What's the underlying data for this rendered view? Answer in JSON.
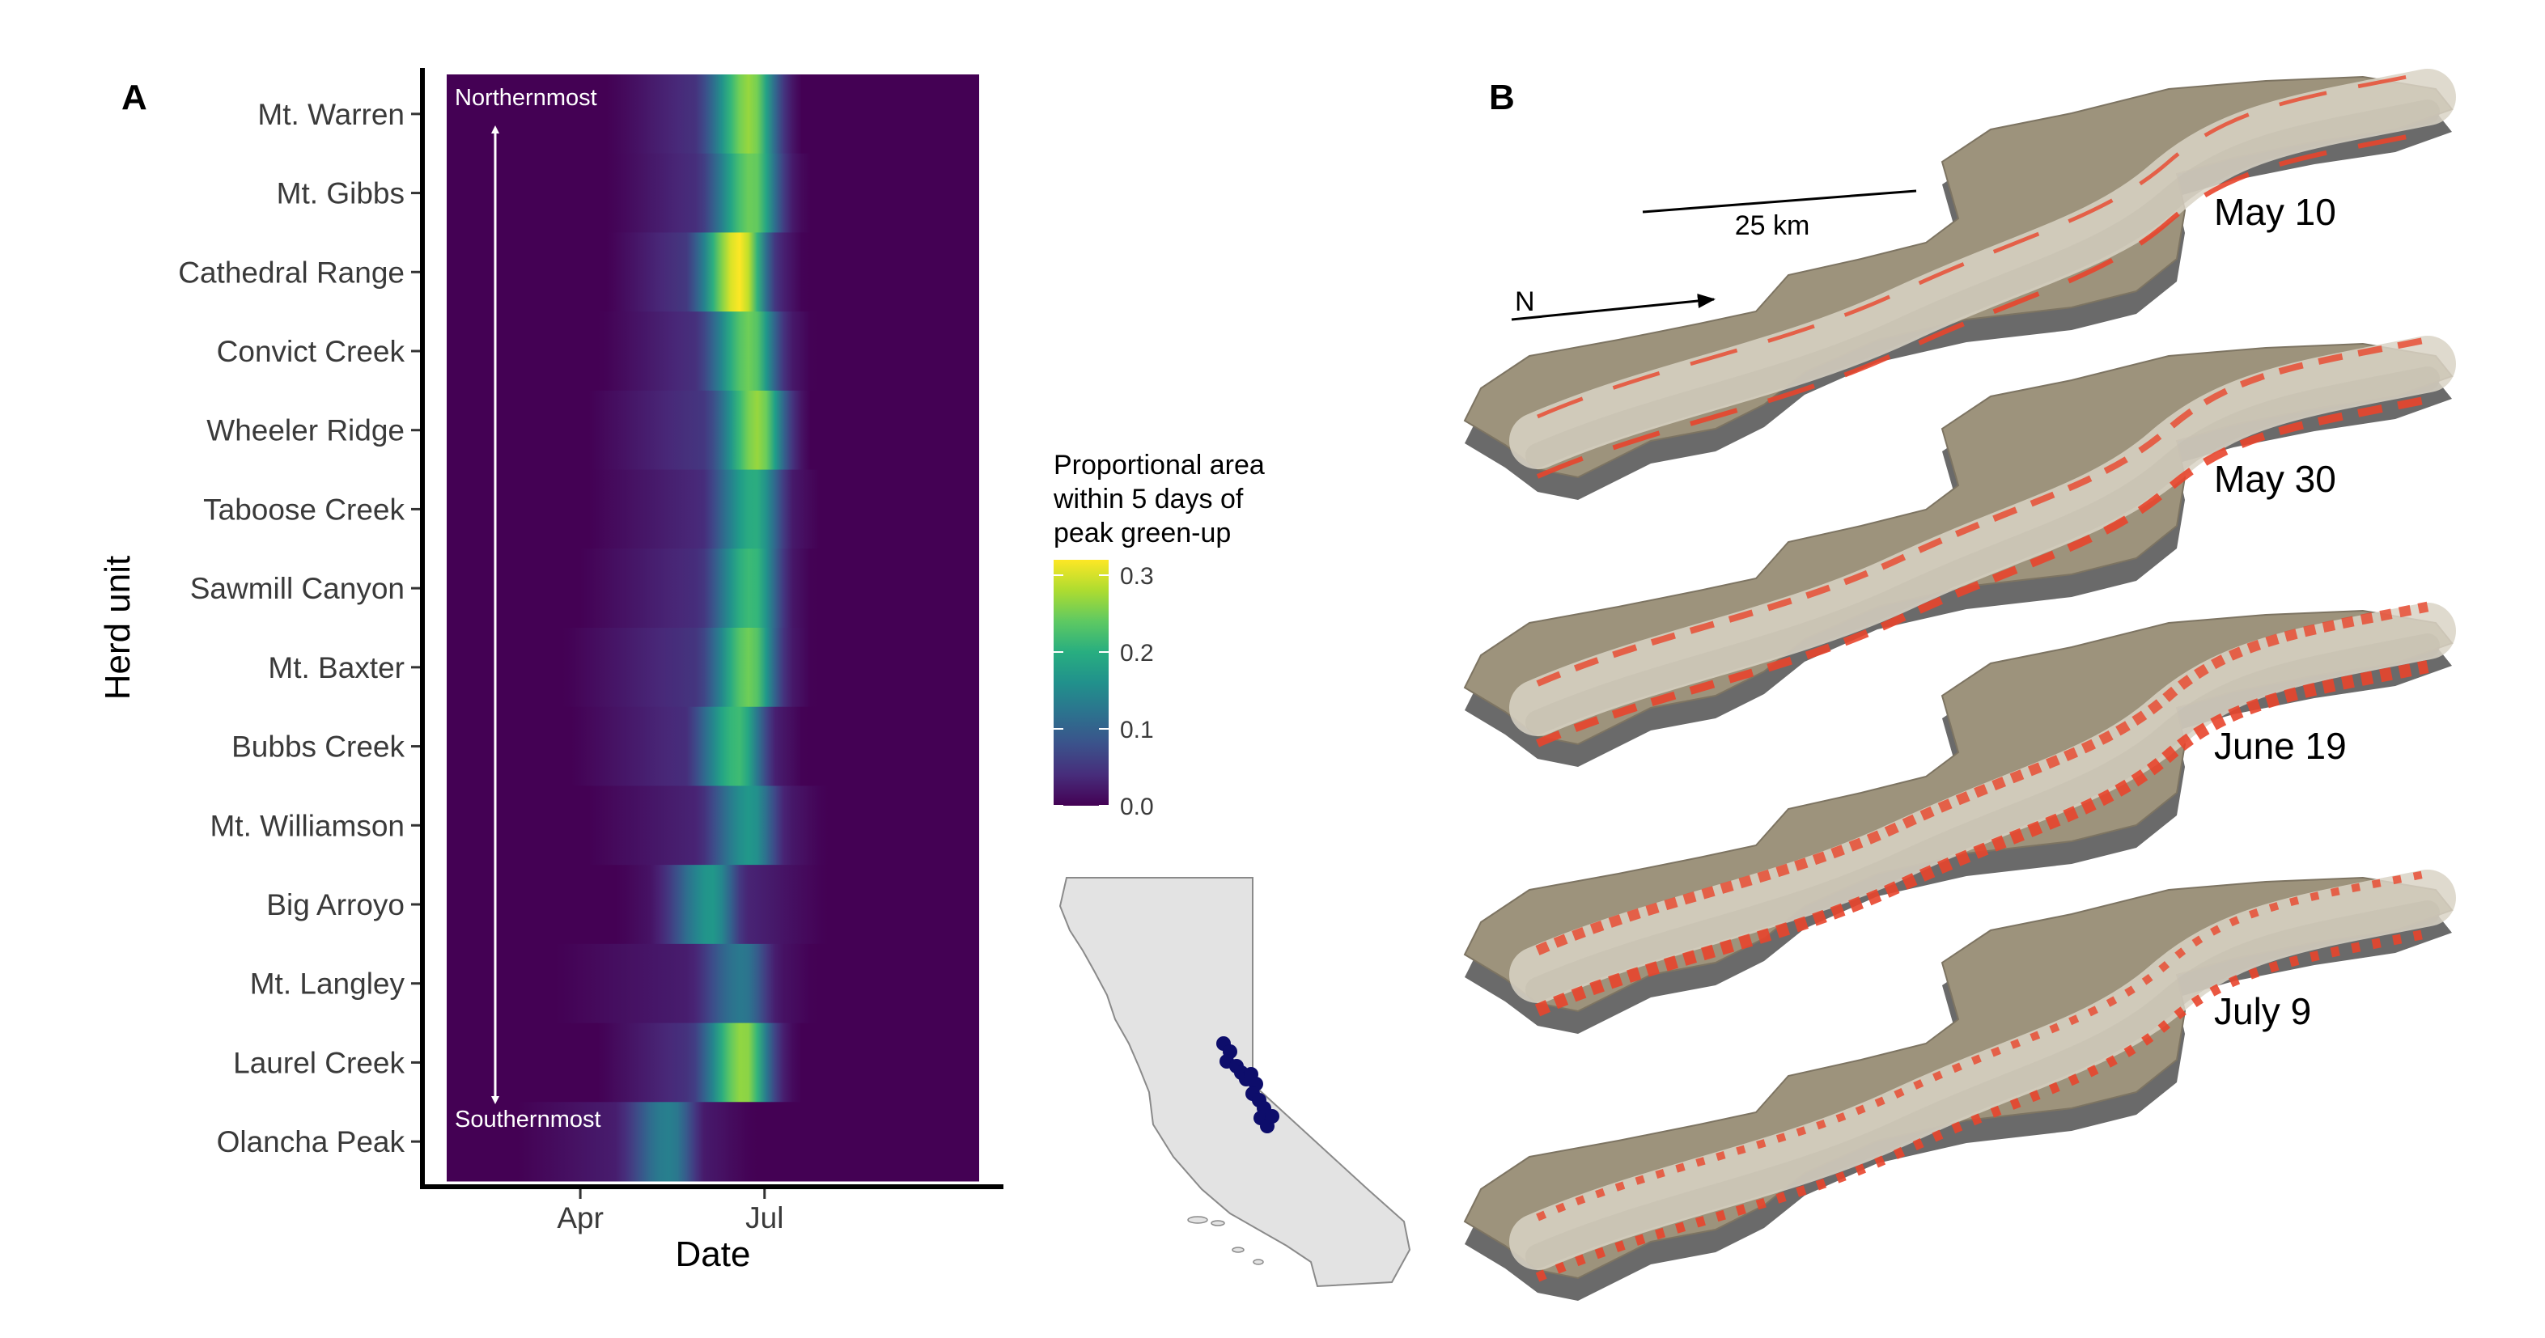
{
  "panel_labels": {
    "a": "A",
    "b": "B"
  },
  "chart_data": [
    {
      "type": "heatmap",
      "panel": "A",
      "xlabel": "Date",
      "ylabel": "Herd unit",
      "x_ticks": [
        {
          "label": "Apr",
          "value": "Apr 1"
        },
        {
          "label": "Jul",
          "value": "Jul 1"
        }
      ],
      "x_range": [
        "Jan 25",
        "Oct 15"
      ],
      "rows": [
        "Mt. Warren",
        "Mt. Gibbs",
        "Cathedral Range",
        "Convict Creek",
        "Wheeler Ridge",
        "Taboose Creek",
        "Sawmill Canyon",
        "Mt. Baxter",
        "Bubbs Creek",
        "Mt. Williamson",
        "Big Arroyo",
        "Mt. Langley",
        "Laurel Creek",
        "Olancha Peak"
      ],
      "series": [
        {
          "row": "Mt. Warren",
          "peak": "Jun 24",
          "peak_value": 0.27,
          "rise_start": "Apr 15",
          "end": "Jul 18"
        },
        {
          "row": "Mt. Gibbs",
          "peak": "Jun 25",
          "peak_value": 0.25,
          "rise_start": "Apr 15",
          "end": "Jul 22"
        },
        {
          "row": "Cathedral Range",
          "peak": "Jun 19",
          "peak_value": 0.32,
          "rise_start": "Apr 15",
          "end": "Jul 20"
        },
        {
          "row": "Convict Creek",
          "peak": "Jun 24",
          "peak_value": 0.25,
          "rise_start": "Apr 12",
          "end": "Jul 24"
        },
        {
          "row": "Wheeler Ridge",
          "peak": "Jun 28",
          "peak_value": 0.27,
          "rise_start": "Apr 5",
          "end": "Jul 20"
        },
        {
          "row": "Taboose Creek",
          "peak": "Jun 26",
          "peak_value": 0.2,
          "rise_start": "Apr 5",
          "end": "Jul 27"
        },
        {
          "row": "Sawmill Canyon",
          "peak": "Jun 25",
          "peak_value": 0.22,
          "rise_start": "Apr 1",
          "end": "Jul 24"
        },
        {
          "row": "Mt. Baxter",
          "peak": "Jun 24",
          "peak_value": 0.25,
          "rise_start": "Mar 25",
          "end": "Jul 24"
        },
        {
          "row": "Bubbs Creek",
          "peak": "Jun 18",
          "peak_value": 0.22,
          "rise_start": "Mar 28",
          "end": "Jul 20"
        },
        {
          "row": "Mt. Williamson",
          "peak": "Jun 24",
          "peak_value": 0.17,
          "rise_start": "Apr 5",
          "end": "Jul 30"
        },
        {
          "row": "Big Arroyo",
          "peak": "Jun 5",
          "peak_value": 0.17,
          "rise_start": "Apr 20",
          "end": "Jul 30"
        },
        {
          "row": "Mt. Langley",
          "peak": "Jun 20",
          "peak_value": 0.13,
          "rise_start": "Mar 20",
          "end": "Jul 25"
        },
        {
          "row": "Laurel Creek",
          "peak": "Jun 21",
          "peak_value": 0.27,
          "rise_start": "Apr 10",
          "end": "Jul 18"
        },
        {
          "row": "Olancha Peak",
          "peak": "May 15",
          "peak_value": 0.14,
          "rise_start": "Mar 1",
          "end": "Jun 25"
        }
      ],
      "annotations": {
        "top": "Northernmost",
        "bottom": "Southernmost"
      },
      "colorbar": {
        "title": [
          "Proportional area",
          "within 5 days of",
          "peak green-up"
        ],
        "ticks": [
          "0.3",
          "0.2",
          "0.1",
          "0.0"
        ],
        "range": [
          0,
          0.32
        ],
        "colormap": "viridis"
      }
    }
  ],
  "inset_map": {
    "region": "California",
    "fill_color": "#e3e3e3",
    "outline_color": "#8a8a8a",
    "point_color": "#0d0d6b"
  },
  "panel_b": {
    "scale_label": "25 km",
    "north_label": "N",
    "dates": [
      "May 10",
      "May 30",
      "June 19",
      "July 9"
    ],
    "highlight_color": "#e8452c",
    "terrain_colors": [
      "#d9d3c6",
      "#9d937c",
      "#7d7462",
      "#c7bfb0"
    ],
    "base_color": "#6a6a6a"
  }
}
